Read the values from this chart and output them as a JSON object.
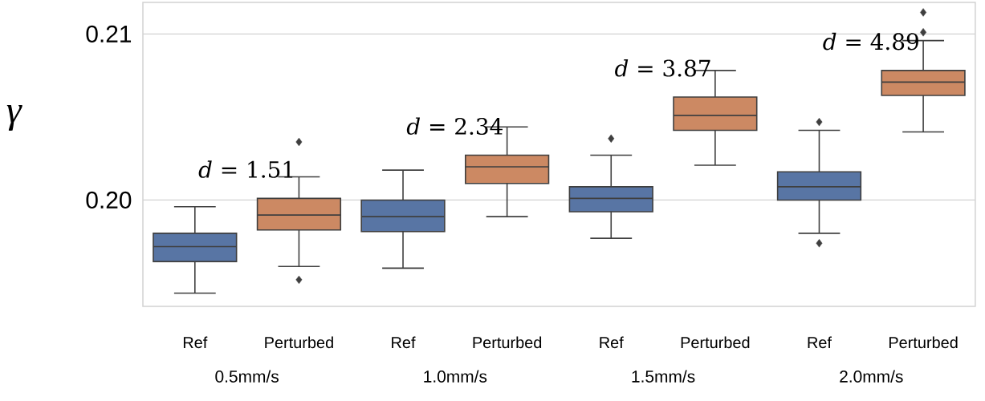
{
  "chart_data": {
    "type": "box",
    "ylabel": "γ",
    "categories": [
      "Ref",
      "Perturbed",
      "Ref",
      "Perturbed",
      "Ref",
      "Perturbed",
      "Ref",
      "Perturbed"
    ],
    "colors": [
      "#5875a4",
      "#cc8963",
      "#5875a4",
      "#cc8963",
      "#5875a4",
      "#cc8963",
      "#5875a4",
      "#cc8963"
    ],
    "boxes": [
      {
        "low": 0.1944,
        "q1": 0.1963,
        "median": 0.1972,
        "q3": 0.198,
        "high": 0.1996
      },
      {
        "low": 0.196,
        "q1": 0.1982,
        "median": 0.1991,
        "q3": 0.2001,
        "high": 0.2014,
        "outliers": [
          0.2035,
          0.1952
        ]
      },
      {
        "low": 0.1959,
        "q1": 0.1981,
        "median": 0.199,
        "q3": 0.2,
        "high": 0.2018
      },
      {
        "low": 0.199,
        "q1": 0.201,
        "median": 0.202,
        "q3": 0.2027,
        "high": 0.2044
      },
      {
        "low": 0.1977,
        "q1": 0.1993,
        "median": 0.2001,
        "q3": 0.2008,
        "high": 0.2027,
        "outliers": [
          0.2037
        ]
      },
      {
        "low": 0.2021,
        "q1": 0.2042,
        "median": 0.2051,
        "q3": 0.2062,
        "high": 0.2078
      },
      {
        "low": 0.198,
        "q1": 0.2,
        "median": 0.2008,
        "q3": 0.2017,
        "high": 0.2042,
        "outliers": [
          0.2047,
          0.1974
        ]
      },
      {
        "low": 0.2041,
        "q1": 0.2063,
        "median": 0.2071,
        "q3": 0.2078,
        "high": 0.2096,
        "outliers": [
          0.2113,
          0.2101
        ]
      }
    ],
    "annotations": [
      "*d* = 1.51",
      "*d* = 2.34",
      "*d* = 3.87",
      "*d* = 4.89",
      "0.5mm/s",
      "1.0mm/s",
      "1.5mm/s",
      "2.0mm/s"
    ],
    "ylim": [
      0.1936,
      0.2119
    ],
    "yticks": [
      {
        "value": 0.2,
        "label": "0.20"
      },
      {
        "value": 0.21,
        "label": "0.21"
      }
    ],
    "grid": "y"
  }
}
